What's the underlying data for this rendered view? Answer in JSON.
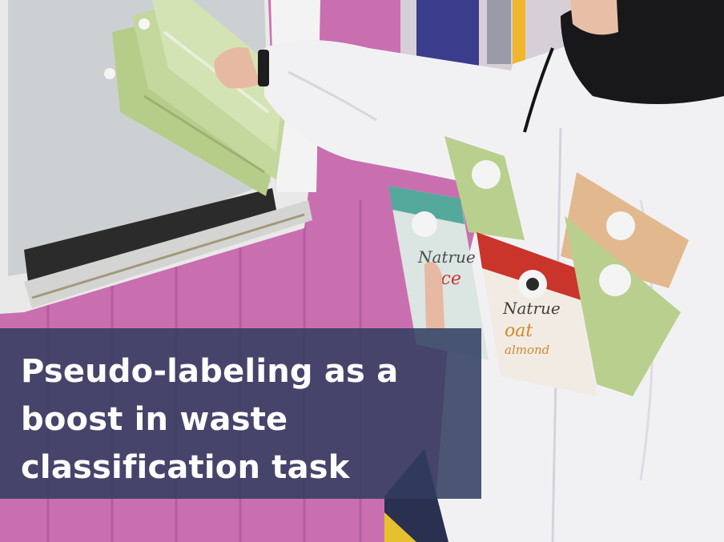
{
  "headline": {
    "lines": [
      "Pseudo-labeling as a",
      "boost in waste",
      "classification task"
    ]
  },
  "packaging": {
    "brand": "Natrue",
    "flavors": [
      "rice",
      "oat",
      "almond"
    ]
  },
  "colors": {
    "container_pink": "#c96fb0",
    "overlay_navy": "#303c60",
    "jacket_white": "#f1f1f3",
    "carton_green": "#b9cf8e",
    "carton_red": "#c9342b"
  }
}
